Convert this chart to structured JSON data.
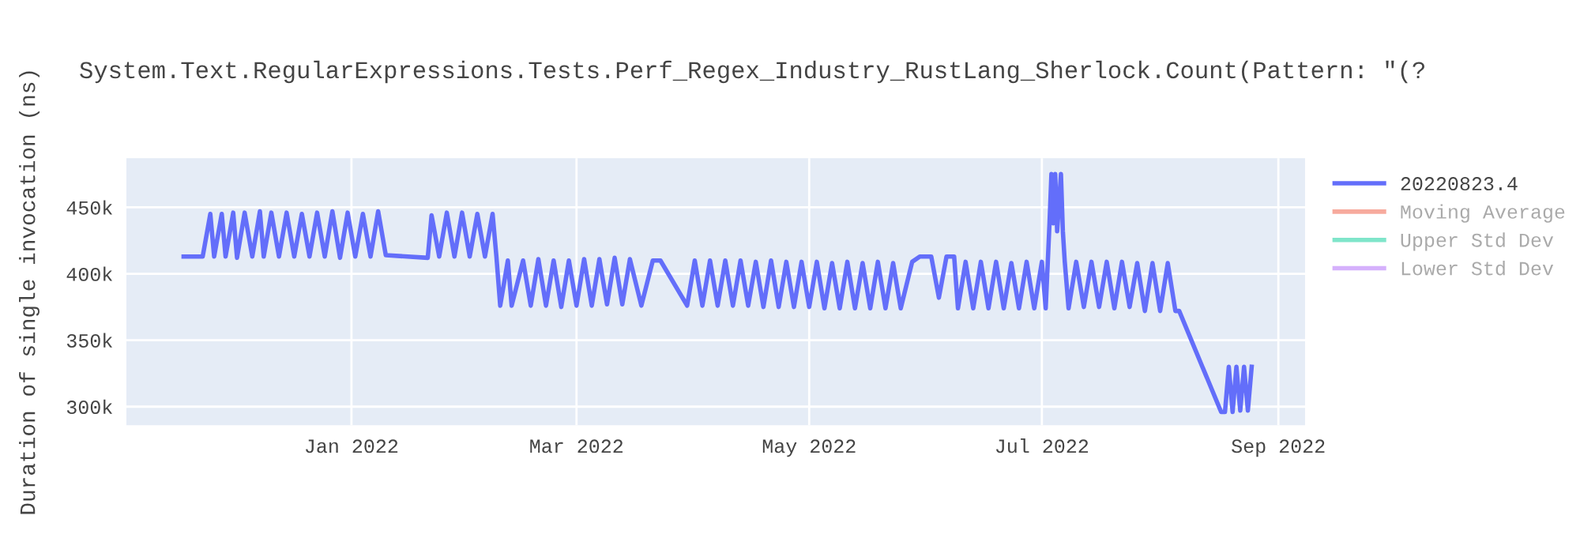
{
  "chart_data": {
    "type": "line",
    "title": "System.Text.RegularExpressions.Tests.Perf_Regex_Industry_RustLang_Sherlock.Count(Pattern: \"(?",
    "ylabel": "Duration of single invocation (ns)",
    "xlim": [
      "2021-11-03",
      "2022-09-08"
    ],
    "xticks": [
      {
        "value": "2022-01-01",
        "label": "Jan 2022"
      },
      {
        "value": "2022-03-01",
        "label": "Mar 2022"
      },
      {
        "value": "2022-05-01",
        "label": "May 2022"
      },
      {
        "value": "2022-07-01",
        "label": "Jul 2022"
      },
      {
        "value": "2022-09-01",
        "label": "Sep 2022"
      }
    ],
    "ylim": [
      286000,
      487000
    ],
    "yticks": [
      {
        "value": 300000,
        "label": "300k"
      },
      {
        "value": 350000,
        "label": "350k"
      },
      {
        "value": 400000,
        "label": "400k"
      },
      {
        "value": 450000,
        "label": "450k"
      }
    ],
    "grid": true,
    "legend": "top right",
    "line_style": "solid",
    "marker": "none",
    "series": [
      {
        "name": "20220823.4",
        "color": "#636efa",
        "x": [
          "2021-11-18",
          "2021-11-23",
          "2021-11-25",
          "2021-11-26",
          "2021-11-28",
          "2021-11-29",
          "2021-12-01",
          "2021-12-02",
          "2021-12-04",
          "2021-12-06",
          "2021-12-08",
          "2021-12-09",
          "2021-12-11",
          "2021-12-13",
          "2021-12-15",
          "2021-12-17",
          "2021-12-19",
          "2021-12-21",
          "2021-12-23",
          "2021-12-25",
          "2021-12-27",
          "2021-12-29",
          "2021-12-31",
          "2022-01-02",
          "2022-01-04",
          "2022-01-06",
          "2022-01-08",
          "2022-01-10",
          "2022-01-21",
          "2022-01-22",
          "2022-01-24",
          "2022-01-26",
          "2022-01-28",
          "2022-01-30",
          "2022-02-01",
          "2022-02-03",
          "2022-02-05",
          "2022-02-07",
          "2022-02-08",
          "2022-02-09",
          "2022-02-11",
          "2022-02-12",
          "2022-02-15",
          "2022-02-17",
          "2022-02-19",
          "2022-02-21",
          "2022-02-23",
          "2022-02-25",
          "2022-02-27",
          "2022-03-01",
          "2022-03-03",
          "2022-03-05",
          "2022-03-07",
          "2022-03-09",
          "2022-03-11",
          "2022-03-13",
          "2022-03-15",
          "2022-03-18",
          "2022-03-21",
          "2022-03-23",
          "2022-03-30",
          "2022-04-01",
          "2022-04-03",
          "2022-04-05",
          "2022-04-07",
          "2022-04-09",
          "2022-04-11",
          "2022-04-13",
          "2022-04-15",
          "2022-04-17",
          "2022-04-19",
          "2022-04-21",
          "2022-04-23",
          "2022-04-25",
          "2022-04-27",
          "2022-04-29",
          "2022-05-01",
          "2022-05-03",
          "2022-05-05",
          "2022-05-07",
          "2022-05-09",
          "2022-05-11",
          "2022-05-13",
          "2022-05-15",
          "2022-05-17",
          "2022-05-19",
          "2022-05-21",
          "2022-05-23",
          "2022-05-25",
          "2022-05-28",
          "2022-05-30",
          "2022-06-02",
          "2022-06-04",
          "2022-06-06",
          "2022-06-08",
          "2022-06-09",
          "2022-06-11",
          "2022-06-13",
          "2022-06-15",
          "2022-06-17",
          "2022-06-19",
          "2022-06-21",
          "2022-06-23",
          "2022-06-25",
          "2022-06-27",
          "2022-06-29",
          "2022-07-01",
          "2022-07-02",
          "2022-07-03",
          "2022-07-03T12:00",
          "2022-07-04",
          "2022-07-04T12:00",
          "2022-07-05",
          "2022-07-06",
          "2022-07-06T12:00",
          "2022-07-07",
          "2022-07-08",
          "2022-07-10",
          "2022-07-12",
          "2022-07-14",
          "2022-07-16",
          "2022-07-18",
          "2022-07-20",
          "2022-07-22",
          "2022-07-24",
          "2022-07-26",
          "2022-07-28",
          "2022-07-30",
          "2022-08-01",
          "2022-08-03",
          "2022-08-05",
          "2022-08-06",
          "2022-08-17",
          "2022-08-18",
          "2022-08-19",
          "2022-08-20",
          "2022-08-21",
          "2022-08-22",
          "2022-08-23",
          "2022-08-24",
          "2022-08-25"
        ],
        "values": [
          413000,
          413000,
          445000,
          413000,
          445000,
          413000,
          446000,
          412000,
          446000,
          413000,
          447000,
          413000,
          446000,
          413000,
          446000,
          413000,
          445000,
          413000,
          446000,
          413000,
          447000,
          412000,
          446000,
          413000,
          445000,
          413000,
          447000,
          414000,
          412000,
          444000,
          413000,
          446000,
          413000,
          446000,
          413000,
          445000,
          413000,
          445000,
          413000,
          376000,
          410000,
          376000,
          410000,
          376000,
          411000,
          376000,
          410000,
          375000,
          410000,
          376000,
          411000,
          376000,
          411000,
          377000,
          412000,
          377000,
          411000,
          376000,
          410000,
          410000,
          376000,
          410000,
          376000,
          410000,
          376000,
          410000,
          376000,
          410000,
          376000,
          409000,
          375000,
          410000,
          375000,
          409000,
          375000,
          409000,
          375000,
          409000,
          374000,
          408000,
          374000,
          409000,
          374000,
          408000,
          374000,
          409000,
          374000,
          408000,
          374000,
          409000,
          413000,
          413000,
          382000,
          413000,
          413000,
          374000,
          409000,
          374000,
          409000,
          374000,
          409000,
          374000,
          408000,
          374000,
          409000,
          374000,
          409000,
          374000,
          438000,
          475000,
          438000,
          475000,
          432000,
          475000,
          432000,
          409000,
          374000,
          409000,
          375000,
          409000,
          375000,
          409000,
          374000,
          409000,
          375000,
          408000,
          372000,
          408000,
          372000,
          408000,
          372000,
          372000,
          296000,
          296000,
          330000,
          296000,
          330000,
          297000,
          330000,
          297000,
          330000
        ]
      },
      {
        "name": "Moving Average",
        "color": "#ef553b"
      },
      {
        "name": "Upper Std Dev",
        "color": "#00cc96"
      },
      {
        "name": "Lower Std Dev",
        "color": "#ab63fa"
      }
    ]
  }
}
